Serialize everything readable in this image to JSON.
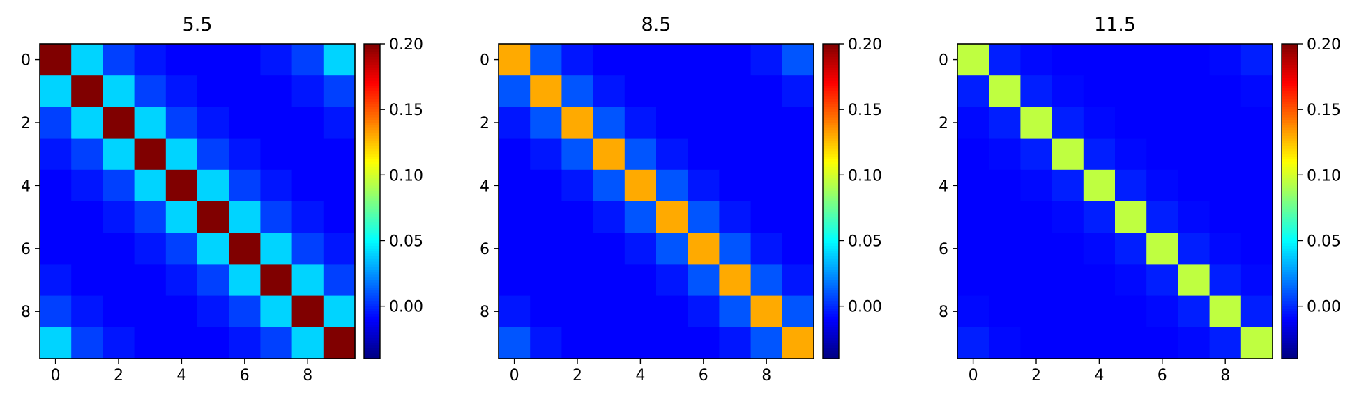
{
  "chart_data": [
    {
      "type": "heatmap",
      "title": "5.5",
      "x_ticks": [
        "0",
        "2",
        "4",
        "6",
        "8"
      ],
      "y_ticks": [
        "0",
        "2",
        "4",
        "6",
        "8"
      ],
      "colorbar": {
        "ticks": [
          "0.20",
          "0.15",
          "0.10",
          "0.05",
          "0.00"
        ],
        "range": [
          -0.04,
          0.2
        ],
        "colormap": "jet"
      },
      "matrix": [
        [
          0.2,
          0.04,
          0.005,
          -0.005,
          -0.01,
          -0.01,
          -0.01,
          -0.005,
          0.005,
          0.04
        ],
        [
          0.04,
          0.2,
          0.04,
          0.005,
          -0.005,
          -0.01,
          -0.01,
          -0.01,
          -0.005,
          0.005
        ],
        [
          0.005,
          0.04,
          0.2,
          0.04,
          0.005,
          -0.005,
          -0.01,
          -0.01,
          -0.01,
          -0.005
        ],
        [
          -0.005,
          0.005,
          0.04,
          0.2,
          0.04,
          0.005,
          -0.005,
          -0.01,
          -0.01,
          -0.01
        ],
        [
          -0.01,
          -0.005,
          0.005,
          0.04,
          0.2,
          0.04,
          0.005,
          -0.005,
          -0.01,
          -0.01
        ],
        [
          -0.01,
          -0.01,
          -0.005,
          0.005,
          0.04,
          0.2,
          0.04,
          0.005,
          -0.005,
          -0.01
        ],
        [
          -0.01,
          -0.01,
          -0.01,
          -0.005,
          0.005,
          0.04,
          0.2,
          0.04,
          0.005,
          -0.005
        ],
        [
          -0.005,
          -0.01,
          -0.01,
          -0.01,
          -0.005,
          0.005,
          0.04,
          0.2,
          0.04,
          0.005
        ],
        [
          0.005,
          -0.005,
          -0.01,
          -0.01,
          -0.01,
          -0.005,
          0.005,
          0.04,
          0.2,
          0.04
        ],
        [
          0.04,
          0.005,
          -0.005,
          -0.01,
          -0.01,
          -0.01,
          -0.005,
          0.005,
          0.04,
          0.2
        ]
      ]
    },
    {
      "type": "heatmap",
      "title": "8.5",
      "x_ticks": [
        "0",
        "2",
        "4",
        "6",
        "8"
      ],
      "y_ticks": [
        "0",
        "2",
        "4",
        "6",
        "8"
      ],
      "colorbar": {
        "ticks": [
          "0.20",
          "0.15",
          "0.10",
          "0.05",
          "0.00"
        ],
        "range": [
          -0.04,
          0.2
        ],
        "colormap": "jet"
      },
      "matrix": [
        [
          0.13,
          0.01,
          -0.005,
          -0.01,
          -0.01,
          -0.01,
          -0.01,
          -0.01,
          -0.005,
          0.01
        ],
        [
          0.01,
          0.13,
          0.01,
          -0.005,
          -0.01,
          -0.01,
          -0.01,
          -0.01,
          -0.01,
          -0.005
        ],
        [
          -0.005,
          0.01,
          0.13,
          0.01,
          -0.005,
          -0.01,
          -0.01,
          -0.01,
          -0.01,
          -0.01
        ],
        [
          -0.01,
          -0.005,
          0.01,
          0.13,
          0.01,
          -0.005,
          -0.01,
          -0.01,
          -0.01,
          -0.01
        ],
        [
          -0.01,
          -0.01,
          -0.005,
          0.01,
          0.13,
          0.01,
          -0.005,
          -0.01,
          -0.01,
          -0.01
        ],
        [
          -0.01,
          -0.01,
          -0.01,
          -0.005,
          0.01,
          0.13,
          0.01,
          -0.005,
          -0.01,
          -0.01
        ],
        [
          -0.01,
          -0.01,
          -0.01,
          -0.01,
          -0.005,
          0.01,
          0.13,
          0.01,
          -0.005,
          -0.01
        ],
        [
          -0.01,
          -0.01,
          -0.01,
          -0.01,
          -0.01,
          -0.005,
          0.01,
          0.13,
          0.01,
          -0.005
        ],
        [
          -0.005,
          -0.01,
          -0.01,
          -0.01,
          -0.01,
          -0.01,
          -0.005,
          0.01,
          0.13,
          0.01
        ],
        [
          0.01,
          -0.005,
          -0.01,
          -0.01,
          -0.01,
          -0.01,
          -0.01,
          -0.005,
          0.01,
          0.13
        ]
      ]
    },
    {
      "type": "heatmap",
      "title": "11.5",
      "x_ticks": [
        "0",
        "2",
        "4",
        "6",
        "8"
      ],
      "y_ticks": [
        "0",
        "2",
        "4",
        "6",
        "8"
      ],
      "colorbar": {
        "ticks": [
          "0.20",
          "0.15",
          "0.10",
          "0.05",
          "0.00"
        ],
        "range": [
          -0.04,
          0.2
        ],
        "colormap": "jet"
      },
      "matrix": [
        [
          0.095,
          -0.003,
          -0.008,
          -0.01,
          -0.01,
          -0.01,
          -0.01,
          -0.01,
          -0.008,
          -0.003
        ],
        [
          -0.003,
          0.095,
          -0.003,
          -0.008,
          -0.01,
          -0.01,
          -0.01,
          -0.01,
          -0.01,
          -0.008
        ],
        [
          -0.008,
          -0.003,
          0.095,
          -0.003,
          -0.008,
          -0.01,
          -0.01,
          -0.01,
          -0.01,
          -0.01
        ],
        [
          -0.01,
          -0.008,
          -0.003,
          0.095,
          -0.003,
          -0.008,
          -0.01,
          -0.01,
          -0.01,
          -0.01
        ],
        [
          -0.01,
          -0.01,
          -0.008,
          -0.003,
          0.095,
          -0.003,
          -0.008,
          -0.01,
          -0.01,
          -0.01
        ],
        [
          -0.01,
          -0.01,
          -0.01,
          -0.008,
          -0.003,
          0.095,
          -0.003,
          -0.008,
          -0.01,
          -0.01
        ],
        [
          -0.01,
          -0.01,
          -0.01,
          -0.01,
          -0.008,
          -0.003,
          0.095,
          -0.003,
          -0.008,
          -0.01
        ],
        [
          -0.01,
          -0.01,
          -0.01,
          -0.01,
          -0.01,
          -0.008,
          -0.003,
          0.095,
          -0.003,
          -0.008
        ],
        [
          -0.008,
          -0.01,
          -0.01,
          -0.01,
          -0.01,
          -0.01,
          -0.008,
          -0.003,
          0.095,
          -0.003
        ],
        [
          -0.003,
          -0.008,
          -0.01,
          -0.01,
          -0.01,
          -0.01,
          -0.01,
          -0.008,
          -0.003,
          0.095
        ]
      ]
    }
  ]
}
